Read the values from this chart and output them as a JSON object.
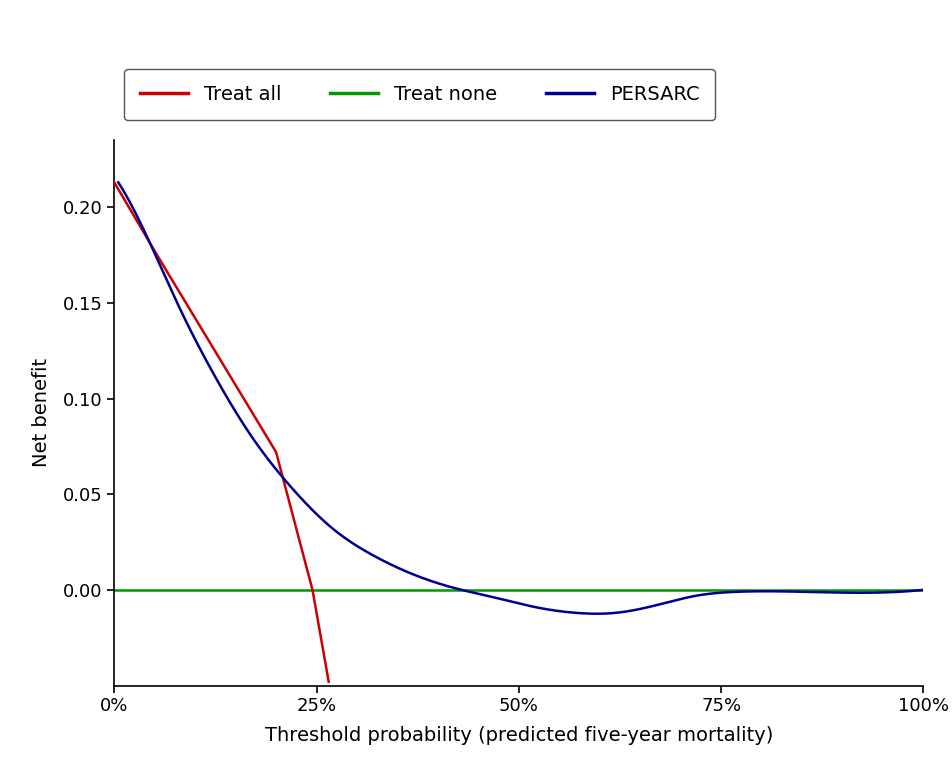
{
  "xlabel": "Threshold probability (predicted five-year mortality)",
  "ylabel": "Net benefit",
  "xlim": [
    0,
    1.0
  ],
  "ylim": [
    -0.05,
    0.235
  ],
  "yticks": [
    0.0,
    0.05,
    0.1,
    0.15,
    0.2
  ],
  "xticks": [
    0.0,
    0.25,
    0.5,
    0.75,
    1.0
  ],
  "treat_all_color": "#cc0000",
  "treat_none_color": "#009900",
  "persarc_color": "#000090",
  "legend_labels": [
    "Treat all",
    "Treat none",
    "PERSARC"
  ],
  "background_color": "#ffffff",
  "line_width": 1.8,
  "treat_all_x": [
    0.0,
    0.025,
    0.05,
    0.1,
    0.15,
    0.2,
    0.245,
    0.265
  ],
  "treat_all_y": [
    0.213,
    0.195,
    0.177,
    0.142,
    0.107,
    0.072,
    0.0,
    -0.048
  ],
  "persarc_kx": [
    0.005,
    0.05,
    0.1,
    0.15,
    0.2,
    0.25,
    0.3,
    0.35,
    0.4,
    0.45,
    0.5,
    0.55,
    0.6,
    0.65,
    0.7,
    0.75,
    0.8,
    0.9,
    1.0
  ],
  "persarc_ky": [
    0.213,
    0.175,
    0.13,
    0.093,
    0.062,
    0.038,
    0.018,
    0.008,
    0.002,
    -0.001,
    -0.007,
    -0.011,
    -0.012,
    -0.01,
    -0.005,
    -0.003,
    -0.002,
    -0.001,
    0.0
  ]
}
